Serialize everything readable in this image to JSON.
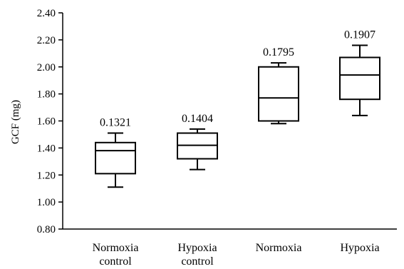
{
  "chart_data": {
    "type": "boxplot",
    "ylabel": "GCF (mg)",
    "xlabel": "",
    "ylim": [
      0.8,
      2.4
    ],
    "yticks": [
      "0.80",
      "1.00",
      "1.20",
      "1.40",
      "1.60",
      "1.80",
      "2.00",
      "2.20",
      "2.40"
    ],
    "grid": false,
    "categories": [
      [
        "Normoxia",
        "control"
      ],
      [
        "Hypoxia",
        "control"
      ],
      [
        "Normoxia"
      ],
      [
        "Hypoxia"
      ]
    ],
    "boxes": [
      {
        "min": 1.11,
        "q1": 1.21,
        "median": 1.38,
        "q3": 1.44,
        "max": 1.51,
        "label": "0.1321"
      },
      {
        "min": 1.24,
        "q1": 1.32,
        "median": 1.42,
        "q3": 1.51,
        "max": 1.54,
        "label": "0.1404"
      },
      {
        "min": 1.58,
        "q1": 1.6,
        "median": 1.77,
        "q3": 2.0,
        "max": 2.03,
        "label": "0.1795"
      },
      {
        "min": 1.64,
        "q1": 1.76,
        "median": 1.94,
        "q3": 2.07,
        "max": 2.16,
        "label": "0.1907"
      }
    ]
  }
}
